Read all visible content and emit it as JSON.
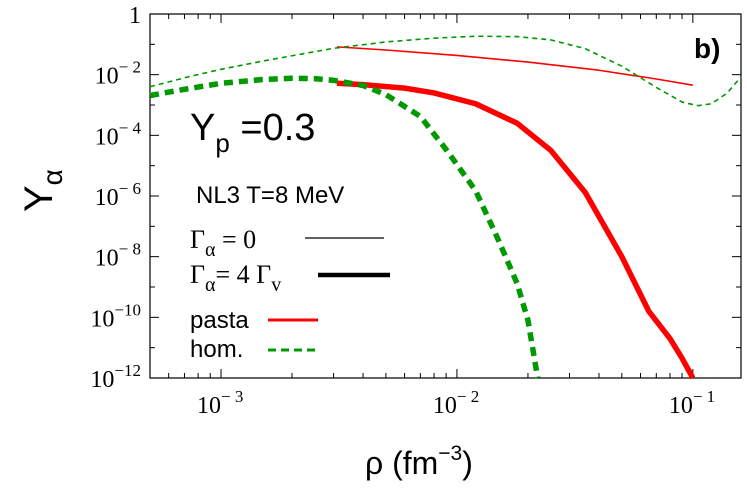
{
  "chart_data": {
    "type": "line",
    "panel_label": "b)",
    "xlabel": "ρ (fm",
    "xlabel_exp": "−3",
    "xlabel_close": ")",
    "ylabel": "Y",
    "ylabel_sub": "α",
    "x_scale": "log",
    "y_scale": "log",
    "xlim": [
      0.0005,
      0.16
    ],
    "ylim": [
      1e-12,
      1
    ],
    "x_ticks": [
      {
        "value": 0.001,
        "base": "10",
        "exp": "− 3"
      },
      {
        "value": 0.01,
        "base": "10",
        "exp": "− 2"
      },
      {
        "value": 0.1,
        "base": "10",
        "exp": "− 1"
      }
    ],
    "y_ticks": [
      {
        "value": 1,
        "base": "1",
        "exp": ""
      },
      {
        "value": 0.01,
        "base": "10",
        "exp": "− 2"
      },
      {
        "value": 0.0001,
        "base": "10",
        "exp": "− 4"
      },
      {
        "value": 1e-06,
        "base": "10",
        "exp": "− 6"
      },
      {
        "value": 1e-08,
        "base": "10",
        "exp": "− 8"
      },
      {
        "value": 1e-10,
        "base": "10",
        "exp": "−10"
      },
      {
        "value": 1e-12,
        "base": "10",
        "exp": "−12"
      }
    ],
    "annotations": {
      "yp_main": "Y",
      "yp_sub": "p",
      "yp_value": " =0.3",
      "model": "NL3  T=8 MeV"
    },
    "legend": {
      "gamma0": {
        "symbol": "Γ",
        "sub": "α",
        "text": " = 0"
      },
      "gamma4": {
        "symbol": "Γ",
        "sub": "α",
        "text": "= 4 Γ",
        "sub2": "v"
      },
      "pasta": "pasta",
      "hom": "hom."
    },
    "colors": {
      "pasta": "#ff0000",
      "hom": "#009900",
      "legend_black": "#000000"
    },
    "series": [
      {
        "name": "pasta",
        "gamma": "0",
        "style": "thin-solid",
        "color": "#ff0000",
        "x": [
          0.0031,
          0.005,
          0.01,
          0.02,
          0.04,
          0.07,
          0.1
        ],
        "y": [
          0.0825,
          0.065,
          0.043,
          0.026,
          0.014,
          0.0072,
          0.0045
        ]
      },
      {
        "name": "hom.",
        "gamma": "0",
        "style": "thin-dashed",
        "color": "#009900",
        "x": [
          0.0005,
          0.00075,
          0.001,
          0.0015,
          0.002,
          0.003,
          0.005,
          0.008,
          0.012,
          0.018,
          0.025,
          0.035,
          0.05,
          0.07,
          0.09,
          0.105,
          0.12,
          0.14,
          0.16
        ],
        "y": [
          0.004,
          0.009,
          0.015,
          0.028,
          0.042,
          0.074,
          0.12,
          0.16,
          0.185,
          0.18,
          0.14,
          0.072,
          0.019,
          0.0038,
          0.00125,
          0.00095,
          0.0011,
          0.0025,
          0.0085
        ]
      },
      {
        "name": "pasta",
        "gamma": "4 Γv",
        "style": "thick-solid",
        "color": "#ff0000",
        "x": [
          0.0031,
          0.004,
          0.006,
          0.008,
          0.012,
          0.018,
          0.025,
          0.035,
          0.05,
          0.065,
          0.08,
          0.09,
          0.1
        ],
        "y": [
          0.0052,
          0.0047,
          0.0036,
          0.0025,
          0.0011,
          0.00025,
          3.2e-05,
          1.3e-06,
          1e-08,
          1.6e-10,
          2e-11,
          4.5e-12,
          1e-12
        ]
      },
      {
        "name": "hom.",
        "gamma": "4 Γv",
        "style": "thick-dashed",
        "color": "#009900",
        "x": [
          0.0005,
          0.0007,
          0.001,
          0.0015,
          0.002,
          0.0025,
          0.003,
          0.004,
          0.005,
          0.007,
          0.009,
          0.012,
          0.015,
          0.018,
          0.02,
          0.022
        ],
        "y": [
          0.00205,
          0.0033,
          0.0052,
          0.0069,
          0.0076,
          0.0074,
          0.0065,
          0.0044,
          0.0022,
          0.00042,
          3.4e-05,
          1.5e-06,
          3.5e-08,
          1.3e-09,
          8e-11,
          1e-12
        ]
      }
    ]
  }
}
